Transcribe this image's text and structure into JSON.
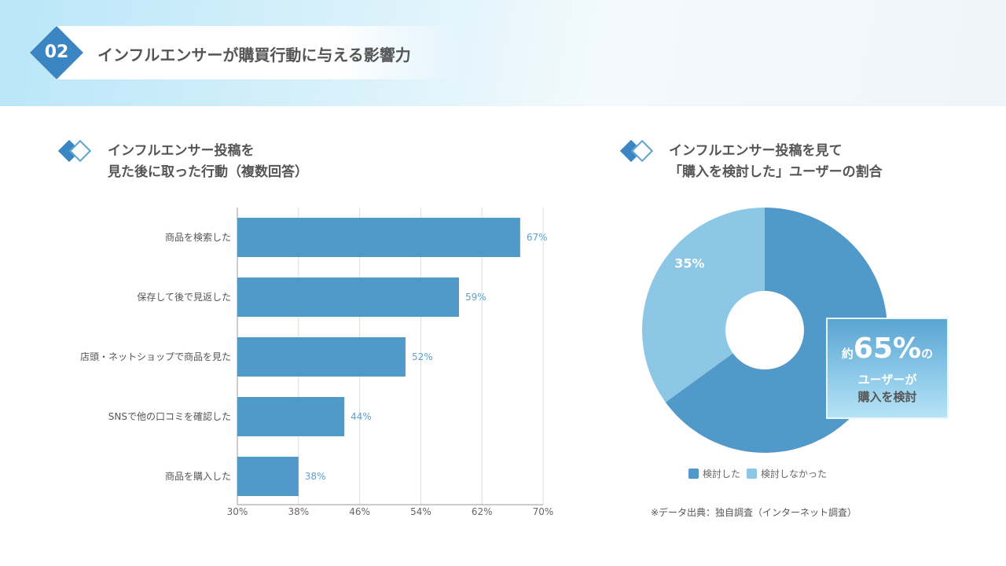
{
  "header": {
    "number": "02",
    "title": "インフルエンサーが購買行動に与える影響力"
  },
  "left_section": {
    "title_line1": "インフルエンサー投稿を",
    "title_line2": "見た後に取った行動（複数回答）"
  },
  "right_section": {
    "title_line1": "インフルエンサー投稿を見て",
    "title_line2": "「購入を検討した」ユーザーの割合"
  },
  "colors": {
    "bar": "#5199c9",
    "pie_dark": "#5199c9",
    "pie_light": "#8cc8e6",
    "accent": "#3b86c2"
  },
  "chart_data": [
    {
      "type": "bar",
      "orientation": "horizontal",
      "categories": [
        "商品を検索した",
        "保存して後で見返した",
        "店頭・ネットショップで商品を見た",
        "SNSで他の口コミを確認した",
        "商品を購入した"
      ],
      "values": [
        67,
        59,
        52,
        44,
        38
      ],
      "data_labels": [
        "67%",
        "59%",
        "52%",
        "44%",
        "38%"
      ],
      "xlim": [
        30,
        70
      ],
      "xticks": [
        "30%",
        "38%",
        "46%",
        "54%",
        "62%",
        "70%"
      ],
      "grid": true
    },
    {
      "type": "pie",
      "donut": true,
      "slices": [
        {
          "name": "検討した",
          "value": 65
        },
        {
          "name": "検討しなかった",
          "value": 35,
          "label": "35%"
        }
      ],
      "legend": "bottom"
    }
  ],
  "callout": {
    "prefix": "約",
    "value": "65%",
    "suffix": "の",
    "line2": "ユーザーが",
    "line3": "購入を検討"
  },
  "source": "※データ出典：独自調査（インターネット調査）"
}
